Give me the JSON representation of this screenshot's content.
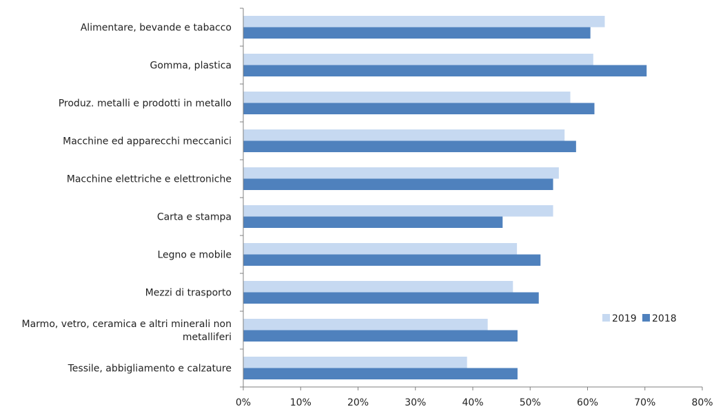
{
  "chart_data": {
    "type": "bar",
    "orientation": "horizontal",
    "categories": [
      [
        "Alimentare, bevande e tabacco"
      ],
      [
        "Gomma, plastica"
      ],
      [
        "Produz. metalli e prodotti in metallo"
      ],
      [
        "Macchine ed apparecchi meccanici"
      ],
      [
        "Macchine elettriche e elettroniche"
      ],
      [
        "Carta e stampa"
      ],
      [
        "Legno e mobile"
      ],
      [
        "Mezzi di trasporto"
      ],
      [
        "Marmo, vetro, ceramica e altri minerali non",
        "metalliferi"
      ],
      [
        "Tessile, abbigliamento e calzature"
      ]
    ],
    "series": [
      {
        "name": "2019",
        "color": "#c6d9f1",
        "values": [
          0.63,
          0.61,
          0.57,
          0.56,
          0.55,
          0.54,
          0.477,
          0.47,
          0.426,
          0.39
        ]
      },
      {
        "name": "2018",
        "color": "#4f81bd",
        "values": [
          0.605,
          0.703,
          0.612,
          0.58,
          0.54,
          0.452,
          0.518,
          0.515,
          0.478,
          0.478
        ]
      }
    ],
    "xlim": [
      0,
      0.8
    ],
    "x_ticks": [
      0,
      0.1,
      0.2,
      0.3,
      0.4,
      0.5,
      0.6,
      0.7,
      0.8
    ],
    "x_tick_labels": [
      "0%",
      "10%",
      "20%",
      "30%",
      "40%",
      "50%",
      "60%",
      "70%",
      "80%"
    ],
    "legend": {
      "position": "right",
      "entries": [
        "2019",
        "2018"
      ]
    },
    "grid": false
  }
}
